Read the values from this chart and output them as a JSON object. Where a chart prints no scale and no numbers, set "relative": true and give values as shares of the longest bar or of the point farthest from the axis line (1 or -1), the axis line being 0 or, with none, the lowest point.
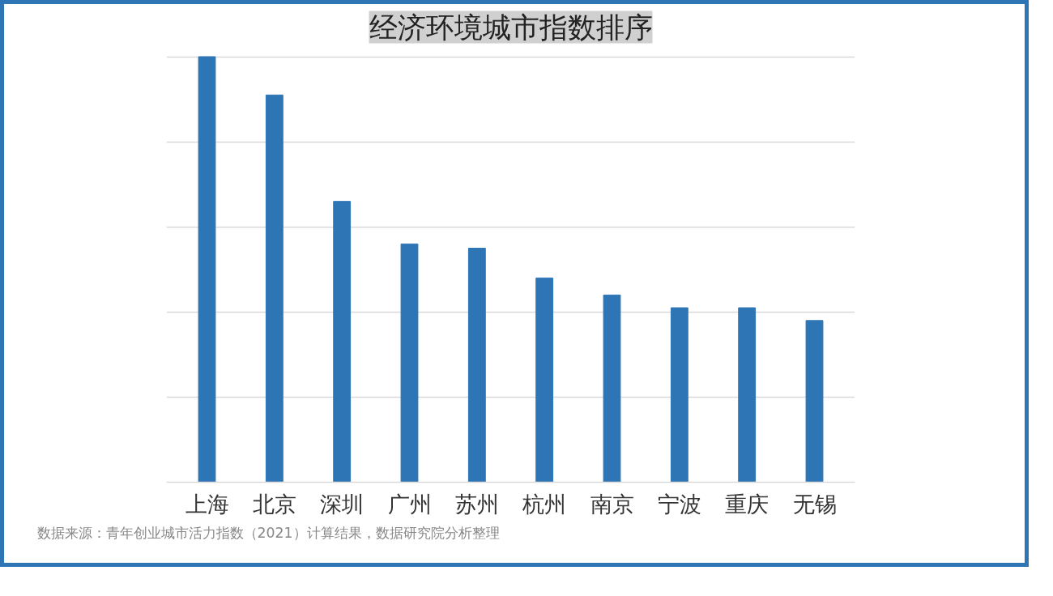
{
  "chart_data": {
    "type": "bar",
    "title": "经济环境城市指数排序",
    "categories": [
      "上海",
      "北京",
      "深圳",
      "广州",
      "苏州",
      "杭州",
      "南京",
      "宁波",
      "重庆",
      "无锡"
    ],
    "values": [
      1,
      0.91,
      0.66,
      0.56,
      0.55,
      0.48,
      0.44,
      0.41,
      0.41,
      0.38
    ],
    "color": "#2e75b6",
    "relative": true,
    "grid": "y",
    "annotations": [
      "数据来源：青年创业城市活力指数（2021）计算结果，数据研究院分析整理"
    ]
  }
}
